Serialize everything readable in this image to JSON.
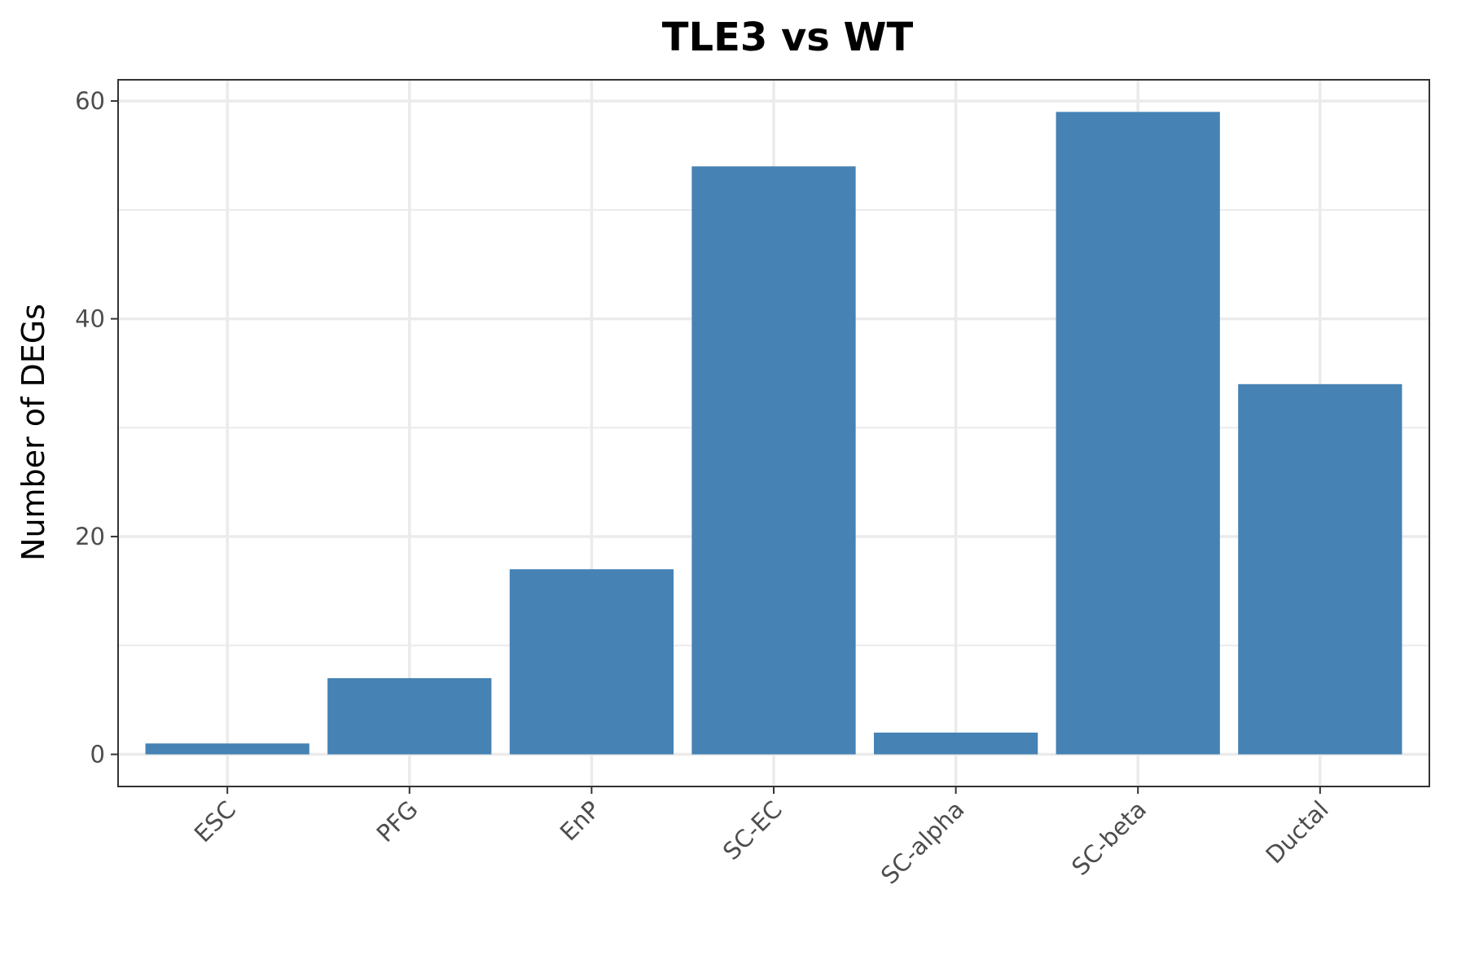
{
  "chart_data": {
    "type": "bar",
    "title": "TLE3 vs WT",
    "xlabel": "",
    "ylabel": "Number of DEGs",
    "categories": [
      "ESC",
      "PFG",
      "EnP",
      "SC-EC",
      "SC-alpha",
      "SC-beta",
      "Ductal"
    ],
    "values": [
      1,
      7,
      17,
      54,
      2,
      59,
      34
    ],
    "ylim": [
      -2.95,
      61.95
    ],
    "yticks": [
      0,
      20,
      40,
      60
    ],
    "yticks_minor": [
      10,
      30,
      50
    ],
    "ytick_labels": [
      "0",
      "20",
      "40",
      "60"
    ],
    "grid": true,
    "legend": "none",
    "bar_color": "#4682b4",
    "grid_color": "#ebebeb",
    "panel_border_color": "#333333"
  }
}
